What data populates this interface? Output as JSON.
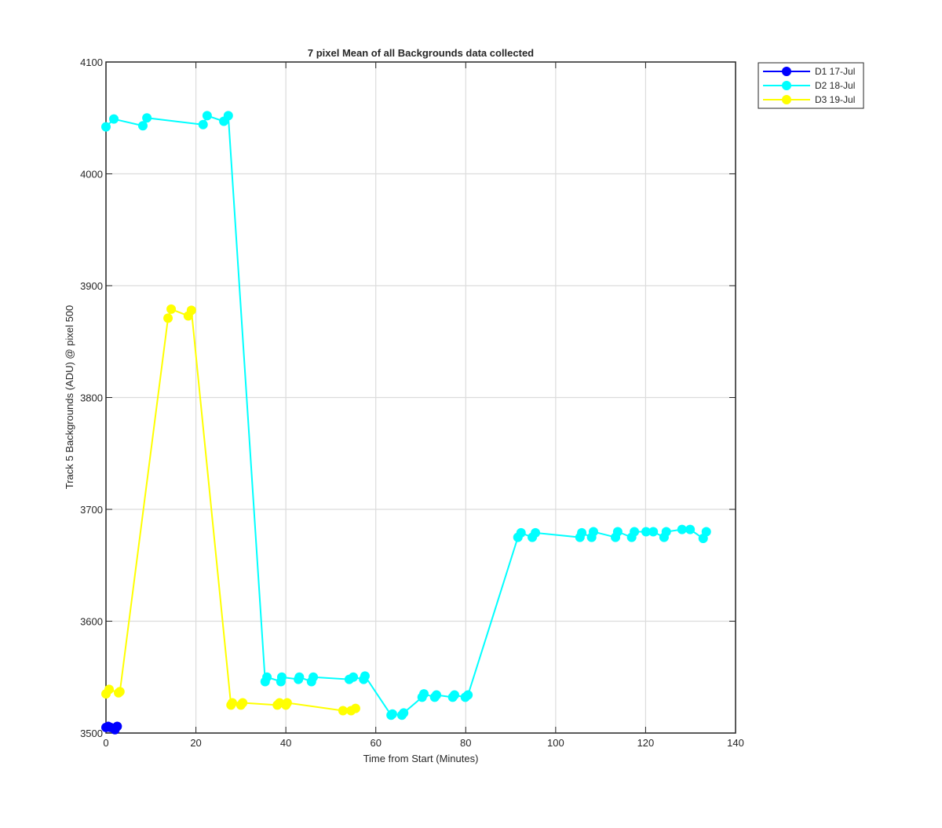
{
  "chart_data": {
    "type": "line",
    "title": "7 pixel Mean of all Backgrounds data collected",
    "xlabel": "Time from Start (Minutes)",
    "ylabel": "Track 5 Backgrounds (ADU) @ pixel 500",
    "xlim": [
      0,
      140
    ],
    "xticks": [
      0,
      20,
      40,
      60,
      80,
      100,
      120,
      140
    ],
    "ylim": [
      3500,
      4100
    ],
    "yticks": [
      3500,
      3600,
      3700,
      3800,
      3900,
      4000,
      4100
    ],
    "grid": true,
    "legend": "outside-top-right",
    "series": [
      {
        "name": "D1 17-Jul",
        "color": "#0000ff",
        "x": [
          0,
          0.5,
          1,
          2,
          2.5
        ],
        "values": [
          3505,
          3506,
          3505,
          3503,
          3506
        ]
      },
      {
        "name": "D2 18-Jul",
        "color": "#00ffff",
        "x": [
          0,
          1.75,
          8.2,
          9.1,
          21.6,
          22.5,
          26.2,
          27.2,
          35.4,
          35.8,
          38.9,
          39.1,
          42.8,
          43,
          45.7,
          46.1,
          54.1,
          55,
          57.3,
          57.6,
          63.4,
          63.7,
          65.8,
          66.2,
          70.3,
          70.7,
          73.1,
          73.5,
          77.1,
          77.5,
          79.9,
          80.5,
          91.6,
          92.3,
          94.8,
          95.5,
          105.4,
          105.8,
          108,
          108.4,
          113.3,
          113.8,
          116.9,
          117.5,
          120.1,
          121.7,
          124.1,
          124.6,
          128.1,
          129.9,
          132.8,
          133.5
        ],
        "values": [
          4042,
          4049,
          4043,
          4050,
          4044,
          4052,
          4047,
          4052,
          3546,
          3550,
          3546,
          3550,
          3548,
          3550,
          3546,
          3550,
          3548,
          3550,
          3548,
          3551,
          3516,
          3517,
          3516,
          3518,
          3532,
          3535,
          3532,
          3534,
          3532,
          3534,
          3532,
          3534,
          3675,
          3679,
          3675,
          3679,
          3675,
          3679,
          3675,
          3680,
          3675,
          3680,
          3675,
          3680,
          3680,
          3680,
          3675,
          3680,
          3682,
          3682,
          3674,
          3680
        ]
      },
      {
        "name": "D3 19-Jul",
        "color": "#ffff00",
        "x": [
          0,
          0.7,
          2.8,
          3.1,
          13.8,
          14.5,
          18.3,
          19,
          27.8,
          28.1,
          30,
          30.4,
          38.1,
          38.6,
          40,
          40.3,
          52.7,
          54.5,
          55.5
        ],
        "values": [
          3535,
          3539,
          3536,
          3537,
          3871,
          3879,
          3873,
          3878,
          3525,
          3527,
          3525,
          3527,
          3525,
          3527,
          3525,
          3527,
          3520,
          3520,
          3522
        ]
      }
    ]
  }
}
